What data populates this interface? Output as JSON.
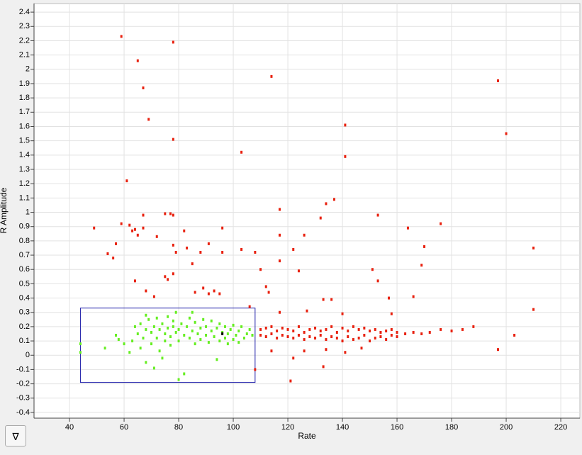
{
  "chart_data": {
    "type": "scatter",
    "x_label": "Rate",
    "y_label": "R Amplitude",
    "xlim": [
      27,
      227
    ],
    "ylim": [
      -0.44,
      2.46
    ],
    "xticks": [
      40,
      60,
      80,
      100,
      120,
      140,
      160,
      180,
      200,
      220
    ],
    "yticks": [
      -0.4,
      -0.3,
      -0.2,
      -0.1,
      0,
      0.1,
      0.2,
      0.3,
      0.4,
      0.5,
      0.6,
      0.7,
      0.8,
      0.9,
      1,
      1.1,
      1.2,
      1.3,
      1.4,
      1.5,
      1.6,
      1.7,
      1.8,
      1.9,
      2,
      2.1,
      2.2,
      2.3,
      2.4
    ],
    "grid": true,
    "selection": {
      "x": [
        44,
        108
      ],
      "y": [
        -0.19,
        0.33
      ],
      "color": "#2222aa"
    },
    "series": [
      {
        "color": "#e8210f",
        "x": [
          59,
          78,
          65,
          67,
          69,
          78,
          114,
          141,
          141,
          103,
          197,
          200,
          61,
          134,
          137,
          117,
          153,
          67,
          75,
          77,
          78,
          59,
          49,
          62,
          63,
          64,
          65,
          67,
          72,
          82,
          96,
          132,
          164,
          176,
          117,
          126,
          57,
          54,
          56,
          78,
          83,
          79,
          88,
          91,
          96,
          103,
          108,
          122,
          117,
          170,
          210,
          110,
          124,
          151,
          78,
          85,
          76,
          75,
          64,
          169,
          68,
          71,
          86,
          89,
          91,
          93,
          95,
          112,
          113,
          133,
          136,
          153,
          157,
          166,
          106,
          117,
          127,
          140,
          158,
          210,
          114,
          126,
          134,
          141,
          147,
          122,
          133,
          108,
          121,
          197,
          203,
          172,
          184,
          188,
          180,
          176,
          110,
          110,
          112,
          112,
          114,
          114,
          116,
          116,
          118,
          118,
          120,
          120,
          122,
          122,
          124,
          124,
          126,
          126,
          128,
          128,
          130,
          130,
          132,
          132,
          134,
          134,
          136,
          136,
          138,
          138,
          140,
          140,
          142,
          142,
          144,
          144,
          146,
          146,
          148,
          148,
          150,
          150,
          152,
          152,
          154,
          154,
          156,
          156,
          158,
          158,
          160,
          160,
          163,
          166,
          169
        ],
        "values": [
          2.23,
          2.19,
          2.06,
          1.87,
          1.65,
          1.51,
          1.95,
          1.61,
          1.39,
          1.42,
          1.92,
          1.55,
          1.22,
          1.06,
          1.09,
          1.02,
          0.98,
          0.98,
          0.99,
          0.99,
          0.98,
          0.92,
          0.89,
          0.91,
          0.87,
          0.88,
          0.84,
          0.89,
          0.83,
          0.87,
          0.89,
          0.96,
          0.89,
          0.92,
          0.84,
          0.84,
          0.78,
          0.71,
          0.68,
          0.77,
          0.75,
          0.72,
          0.72,
          0.78,
          0.72,
          0.74,
          0.72,
          0.74,
          0.66,
          0.76,
          0.75,
          0.6,
          0.59,
          0.6,
          0.57,
          0.64,
          0.53,
          0.55,
          0.52,
          0.63,
          0.45,
          0.41,
          0.44,
          0.47,
          0.43,
          0.45,
          0.43,
          0.48,
          0.44,
          0.39,
          0.39,
          0.52,
          0.4,
          0.41,
          0.34,
          0.3,
          0.31,
          0.29,
          0.29,
          0.32,
          0.03,
          0.03,
          0.04,
          0.02,
          0.05,
          -0.02,
          -0.08,
          -0.1,
          -0.18,
          0.04,
          0.14,
          0.16,
          0.18,
          0.2,
          0.17,
          0.18,
          0.14,
          0.18,
          0.13,
          0.19,
          0.15,
          0.2,
          0.12,
          0.17,
          0.14,
          0.19,
          0.13,
          0.18,
          0.12,
          0.17,
          0.14,
          0.2,
          0.11,
          0.16,
          0.13,
          0.18,
          0.12,
          0.19,
          0.14,
          0.17,
          0.11,
          0.18,
          0.13,
          0.2,
          0.12,
          0.16,
          0.1,
          0.19,
          0.13,
          0.17,
          0.11,
          0.2,
          0.12,
          0.18,
          0.14,
          0.19,
          0.1,
          0.17,
          0.12,
          0.18,
          0.13,
          0.16,
          0.11,
          0.17,
          0.14,
          0.18,
          0.13,
          0.16,
          0.15,
          0.16,
          0.15
        ]
      },
      {
        "color": "#66ee22",
        "x": [
          44,
          44,
          53,
          57,
          58,
          60,
          62,
          63,
          64,
          65,
          66,
          66,
          67,
          68,
          68,
          69,
          70,
          70,
          71,
          72,
          72,
          73,
          73,
          74,
          75,
          75,
          76,
          76,
          77,
          77,
          78,
          78,
          79,
          79,
          80,
          80,
          80,
          81,
          82,
          82,
          83,
          84,
          84,
          85,
          86,
          86,
          87,
          88,
          88,
          89,
          90,
          90,
          91,
          92,
          92,
          93,
          94,
          94,
          95,
          95,
          96,
          97,
          97,
          98,
          98,
          99,
          100,
          100,
          101,
          102,
          102,
          103,
          104,
          105,
          106,
          107,
          71,
          74,
          68,
          85
        ],
        "values": [
          0.02,
          0.08,
          0.05,
          0.14,
          0.11,
          0.08,
          0.02,
          0.1,
          0.2,
          0.15,
          0.05,
          0.22,
          0.12,
          0.18,
          -0.05,
          0.25,
          0.08,
          0.16,
          0.2,
          0.12,
          0.26,
          0.03,
          0.18,
          0.22,
          0.1,
          0.15,
          0.27,
          0.19,
          0.07,
          0.13,
          0.2,
          0.24,
          0.16,
          0.3,
          -0.17,
          0.1,
          0.18,
          0.22,
          0.14,
          -0.13,
          0.2,
          0.26,
          0.12,
          0.17,
          0.23,
          0.08,
          0.15,
          0.19,
          0.11,
          0.25,
          0.14,
          0.2,
          0.09,
          0.17,
          0.24,
          0.13,
          0.19,
          -0.03,
          0.1,
          0.22,
          0.16,
          0.12,
          0.2,
          0.08,
          0.15,
          0.18,
          0.11,
          0.21,
          0.14,
          0.09,
          0.17,
          0.2,
          0.12,
          0.15,
          0.18,
          0.14,
          -0.09,
          -0.02,
          0.28,
          0.3
        ]
      },
      {
        "color": "#000000",
        "x": [
          96
        ],
        "values": [
          0.15
        ]
      }
    ]
  },
  "filter_button": "∇"
}
